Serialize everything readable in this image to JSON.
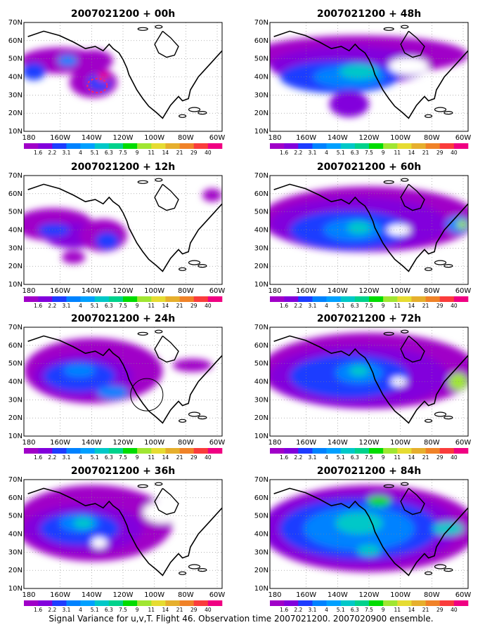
{
  "caption": "Signal Variance for u,v,T. Flight 46. Observation time 2007021200. 2007020900 ensemble.",
  "colorbar": {
    "labels": [
      "1.6",
      "2.2",
      "3.1",
      "4",
      "5.1",
      "6.3",
      "7.5",
      "9",
      "11",
      "14",
      "21",
      "29",
      "40"
    ],
    "colors": [
      "#a000c8",
      "#8200dc",
      "#1e3cff",
      "#0082ff",
      "#00a0ff",
      "#00c8c8",
      "#00d28c",
      "#00dc00",
      "#a0e632",
      "#e6dc32",
      "#e6af2d",
      "#f08228",
      "#fa3c3c",
      "#f00082"
    ]
  },
  "axes": {
    "lon_labels": [
      "180",
      "160W",
      "140W",
      "120W",
      "100W",
      "80W",
      "60W"
    ],
    "lat_labels": [
      "70N",
      "60N",
      "50N",
      "40N",
      "30N",
      "20N",
      "10N"
    ]
  },
  "panels": [
    {
      "title": "2007021200 + 00h"
    },
    {
      "title": "2007021200 + 48h"
    },
    {
      "title": "2007021200 + 12h"
    },
    {
      "title": "2007021200 + 60h"
    },
    {
      "title": "2007021200 + 24h"
    },
    {
      "title": "2007021200 + 72h"
    },
    {
      "title": "2007021200 + 36h"
    },
    {
      "title": "2007021200 + 84h"
    }
  ]
}
